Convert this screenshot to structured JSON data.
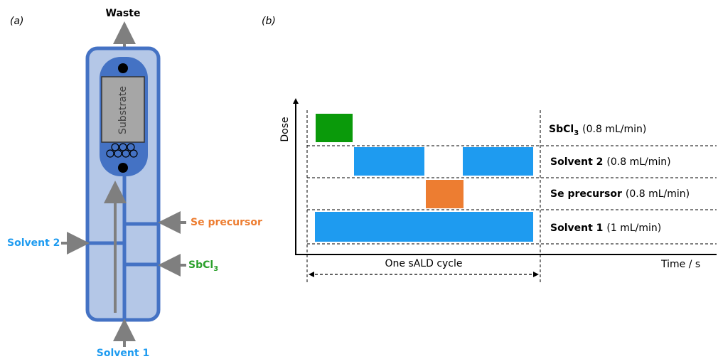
{
  "panel_a": {
    "label": "(a)",
    "outlet": "Waste",
    "substrate": "Substrate",
    "inlets": [
      {
        "name": "Se precursor"
      },
      {
        "name": "Solvent 2"
      },
      {
        "name": "SbCl",
        "sub": "3"
      },
      {
        "name": "Solvent 1"
      }
    ]
  },
  "panel_b": {
    "label": "(b)",
    "y_axis": "Dose",
    "x_axis": "Time / s",
    "cycle": "One sALD cycle",
    "rows": [
      {
        "name": "SbCl",
        "sub": "3",
        "rate": "(0.8 mL/min)"
      },
      {
        "name": "Solvent 2",
        "rate": "(0.8 mL/min)"
      },
      {
        "name": "Se precursor",
        "rate": "(0.8 mL/min)"
      },
      {
        "name": "Solvent 1",
        "rate": "(1 mL/min)"
      }
    ]
  }
}
